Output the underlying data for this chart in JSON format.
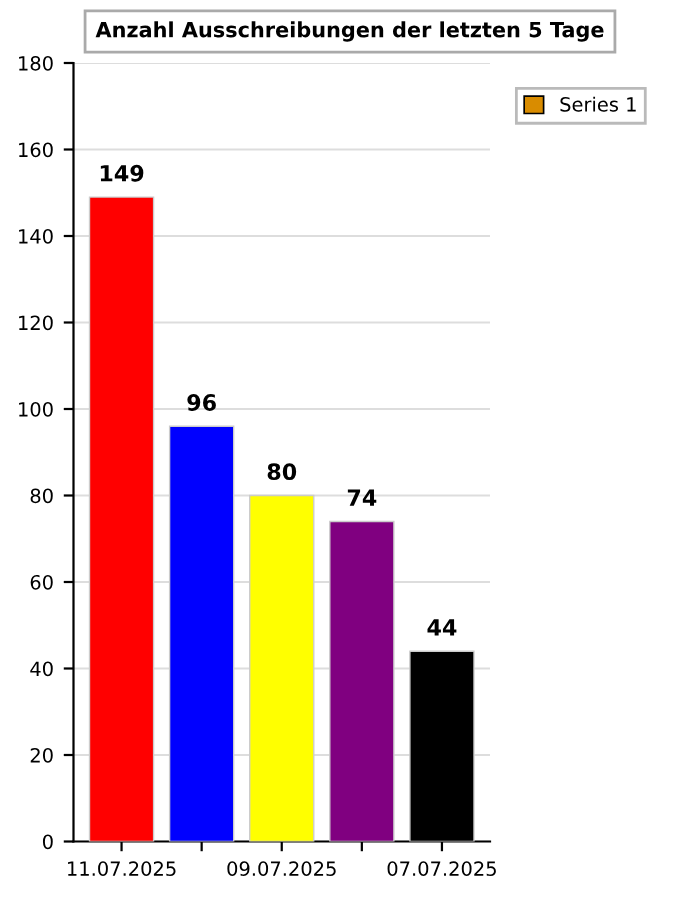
{
  "chart_data": {
    "type": "bar",
    "title": "Anzahl Ausschreibungen der letzten 5 Tage",
    "categories": [
      "11.07.2025",
      null,
      "09.07.2025",
      null,
      "07.07.2025"
    ],
    "series": [
      {
        "name": "Series 1",
        "color": "#d98c00",
        "colors": [
          "#ff0000",
          "#0000ff",
          "#ffff00",
          "#800080",
          "#000000"
        ],
        "values": [
          149,
          96,
          80,
          74,
          44
        ]
      }
    ],
    "ylim": [
      0,
      180
    ],
    "yticks": [
      0,
      20,
      40,
      60,
      80,
      100,
      120,
      140,
      160,
      180
    ],
    "grid": "y",
    "legend": "top right",
    "data_labels": true
  }
}
